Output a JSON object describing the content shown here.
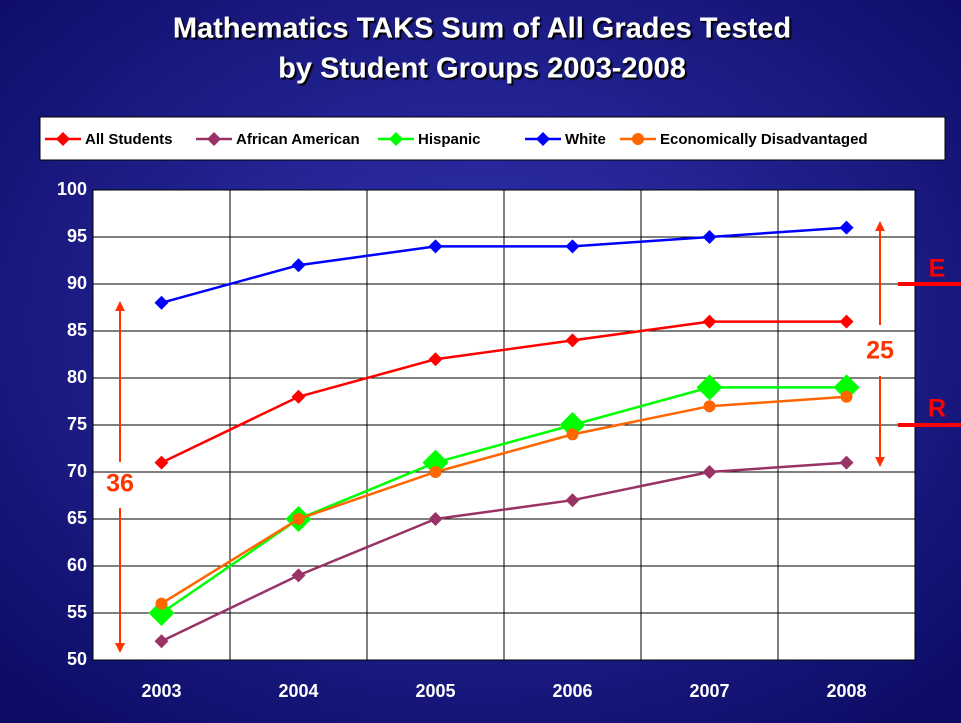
{
  "chart_data": {
    "type": "line",
    "title": "Mathematics TAKS Sum of All Grades Tested",
    "subtitle": "by Student Groups 2003-2008",
    "categories": [
      "2003",
      "2004",
      "2005",
      "2006",
      "2007",
      "2008"
    ],
    "series": [
      {
        "name": "All Students",
        "color": "#ff0000",
        "marker": "diamond",
        "values": [
          71,
          78,
          82,
          84,
          86,
          86
        ]
      },
      {
        "name": "African American",
        "color": "#993366",
        "marker": "diamond",
        "values": [
          52,
          59,
          65,
          67,
          70,
          71
        ]
      },
      {
        "name": "Hispanic",
        "color": "#00ff00",
        "marker": "diamond-large",
        "values": [
          55,
          65,
          71,
          75,
          79,
          79
        ]
      },
      {
        "name": "White",
        "color": "#0000ff",
        "marker": "diamond",
        "values": [
          88,
          92,
          94,
          94,
          95,
          96
        ]
      },
      {
        "name": "Economically Disadvantaged",
        "color": "#ff6600",
        "marker": "circle",
        "values": [
          56,
          65,
          70,
          74,
          77,
          78
        ]
      }
    ],
    "ylim": [
      50,
      100
    ],
    "yticks": [
      50,
      55,
      60,
      65,
      70,
      75,
      80,
      85,
      90,
      95,
      100
    ],
    "grid": true,
    "legend": "top",
    "annotations": [
      "36",
      "25",
      "E",
      "R"
    ]
  }
}
